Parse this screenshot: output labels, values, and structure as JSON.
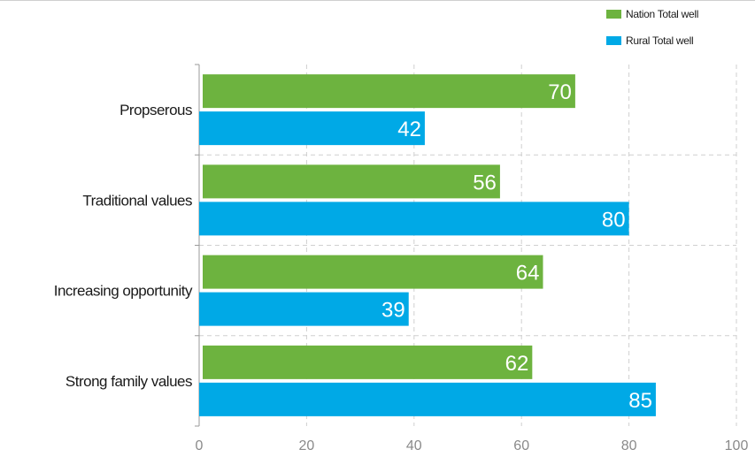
{
  "chart_data": {
    "type": "bar",
    "orientation": "horizontal",
    "categories": [
      "Propserous",
      "Traditional values",
      "Increasing opportunity",
      "Strong family values"
    ],
    "series": [
      {
        "name": "Nation Total well",
        "color": "#6db33f",
        "values": [
          70,
          56,
          64,
          62
        ]
      },
      {
        "name": "Rural Total well",
        "color": "#00a9e6",
        "values": [
          42,
          80,
          39,
          85
        ]
      }
    ],
    "xticks": [
      "0",
      "20",
      "40",
      "60",
      "80",
      "100"
    ],
    "xlim": [
      0,
      100
    ],
    "title": "",
    "xlabel": "",
    "ylabel": "",
    "grid": true,
    "legend_position": "top-right"
  }
}
